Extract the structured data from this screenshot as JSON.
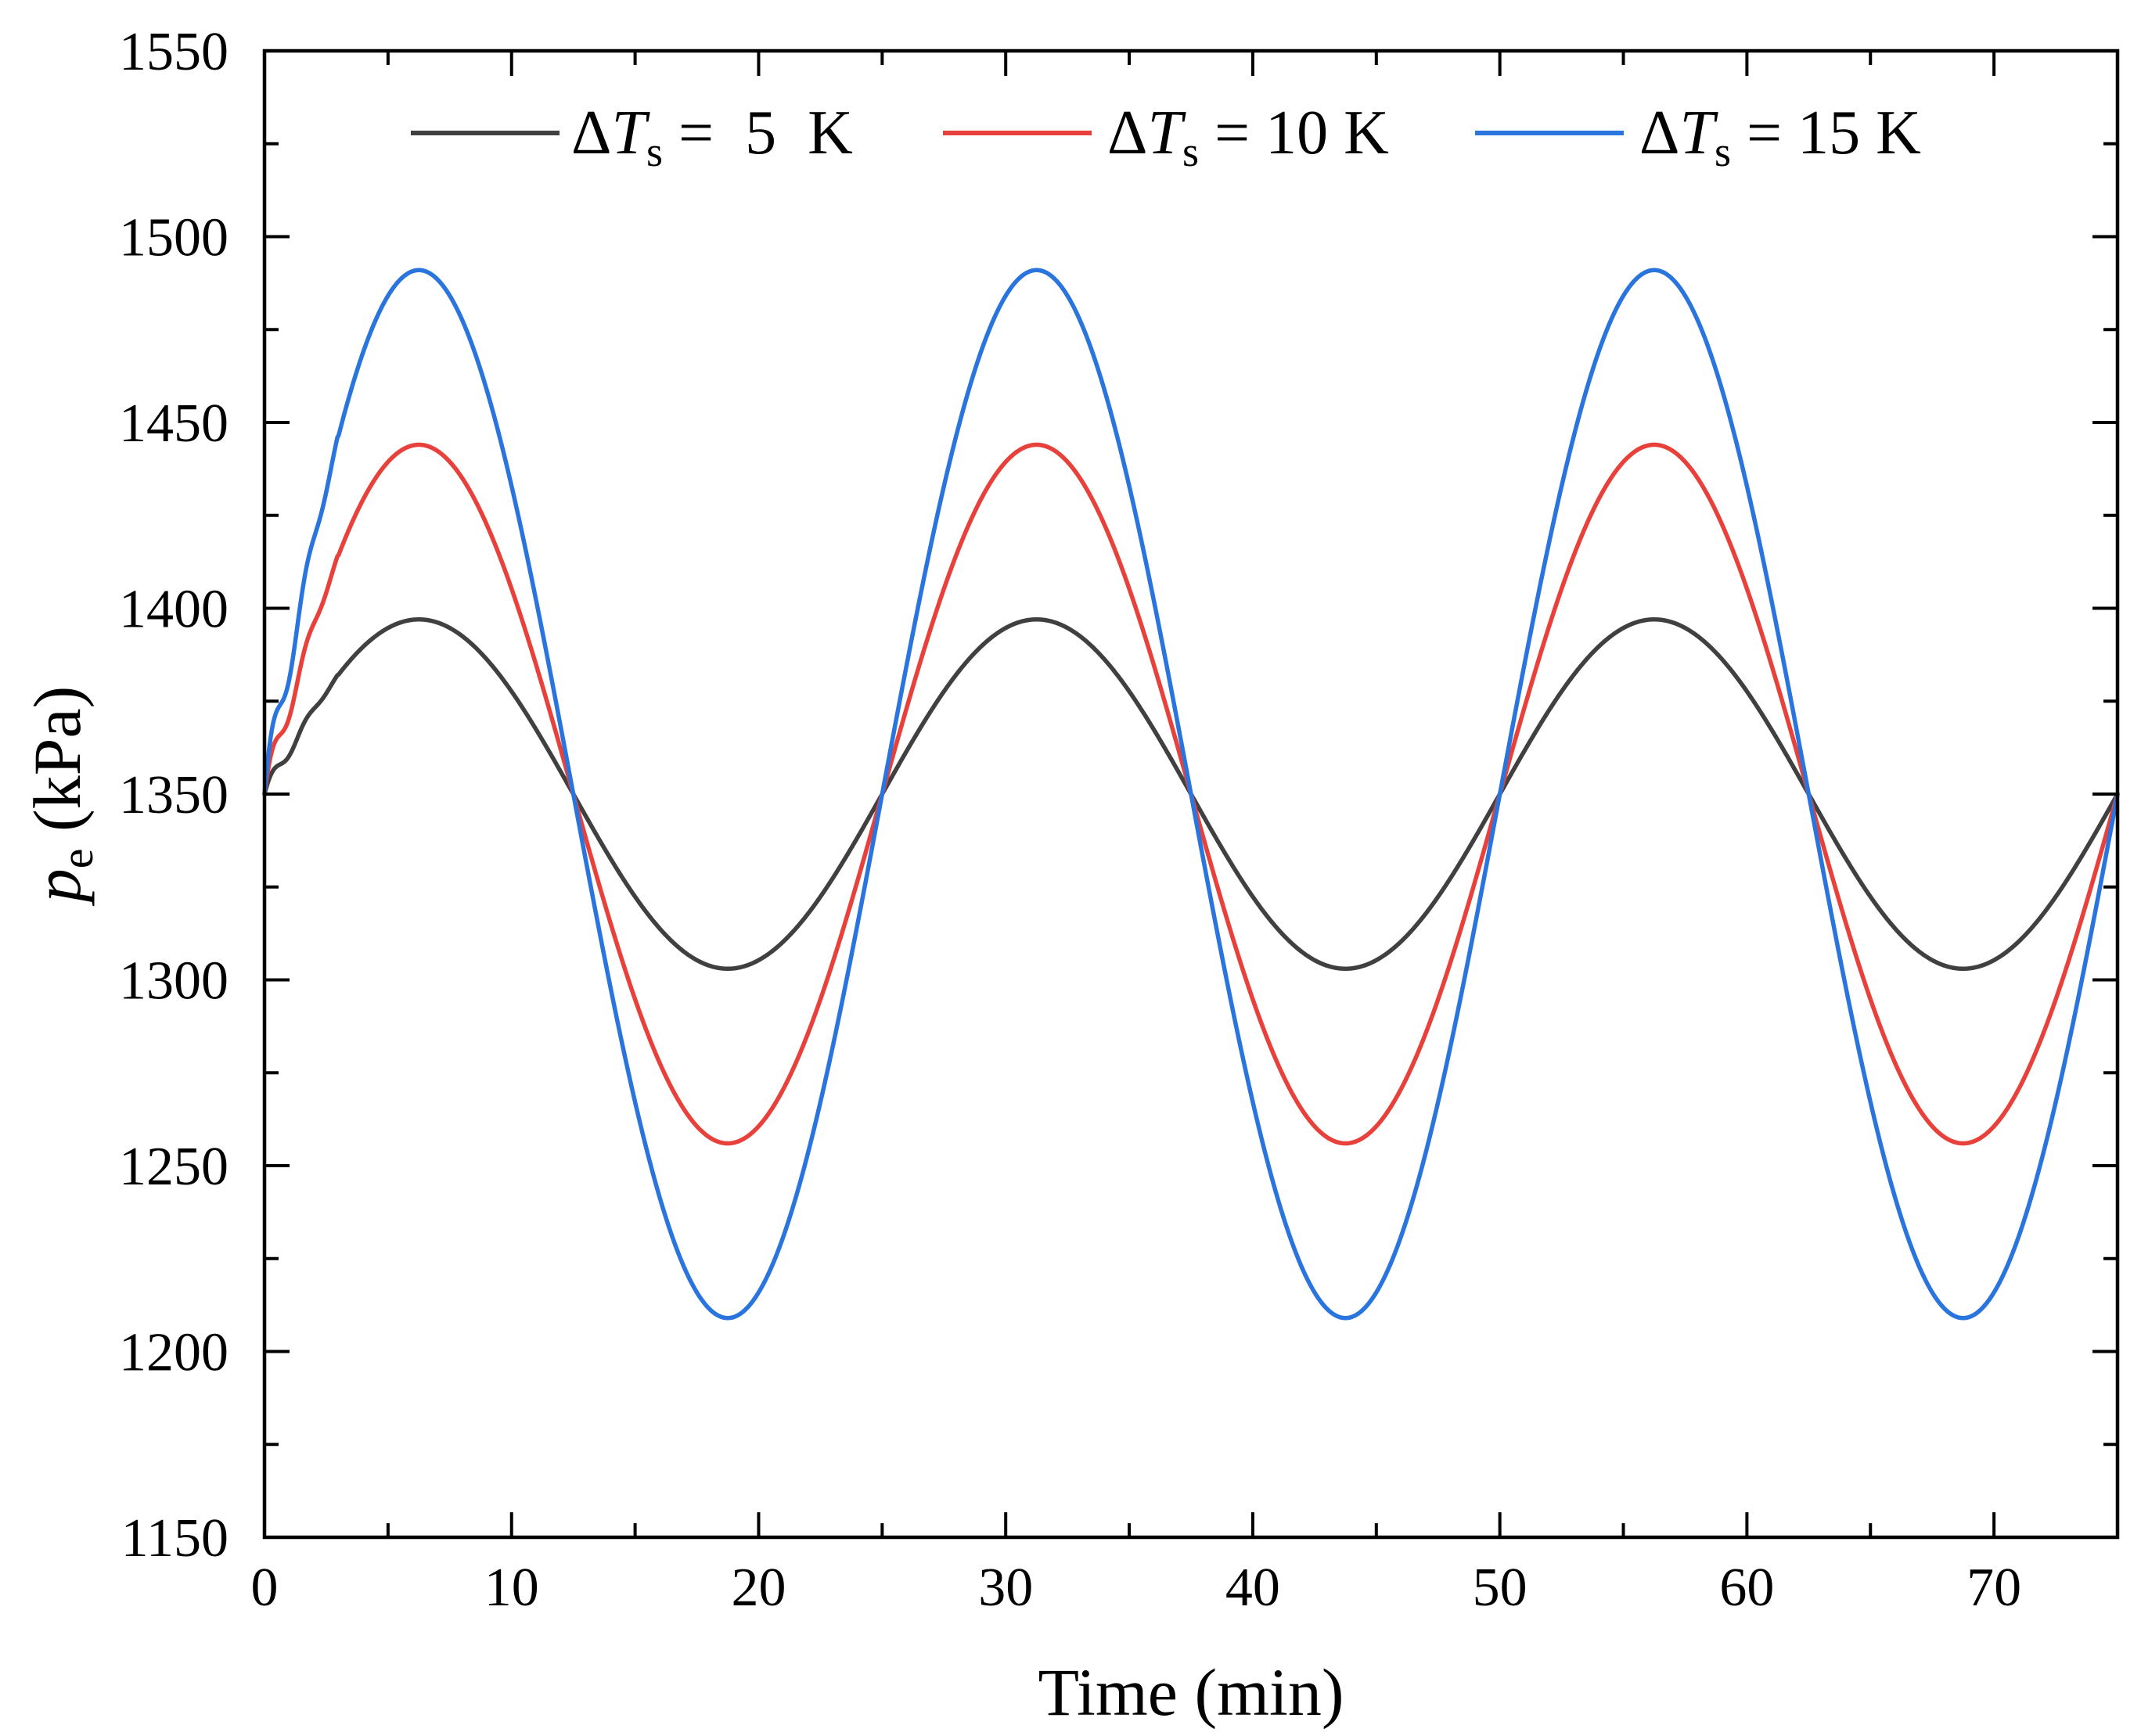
{
  "chart_data": {
    "type": "line",
    "xlabel": "Time (min)",
    "ylabel": {
      "symbol": "p",
      "subscript": "e",
      "unit": " (kPa)"
    },
    "xlim": [
      0,
      75
    ],
    "ylim": [
      1150,
      1550
    ],
    "x_ticks": [
      0,
      10,
      20,
      30,
      40,
      50,
      60,
      70
    ],
    "x_minor_step": 5,
    "y_ticks": [
      1150,
      1200,
      1250,
      1300,
      1350,
      1400,
      1450,
      1500,
      1550
    ],
    "y_minor_step": 25,
    "legend_position": "top",
    "period_min": 25,
    "baseline_kPa": 1350,
    "series": [
      {
        "name": "ΔTs = 5 K",
        "legend": {
          "delta": "Δ",
          "symbol": "T",
          "subscript": "s",
          "rest": " =  5  K"
        },
        "color": "#404040",
        "amplitude_kPa": 47,
        "peak_kPa": 1397,
        "trough_kPa": 1303
      },
      {
        "name": "ΔTs = 10 K",
        "legend": {
          "delta": "Δ",
          "symbol": "T",
          "subscript": "s",
          "rest": " = 10 K"
        },
        "color": "#e8403a",
        "amplitude_kPa": 94,
        "peak_kPa": 1442,
        "trough_kPa": 1254
      },
      {
        "name": "ΔTs = 15 K",
        "legend": {
          "delta": "Δ",
          "symbol": "T",
          "subscript": "s",
          "rest": " = 15 K"
        },
        "color": "#2a75dd",
        "amplitude_kPa": 141,
        "peak_kPa": 1487,
        "trough_kPa": 1205
      }
    ]
  }
}
